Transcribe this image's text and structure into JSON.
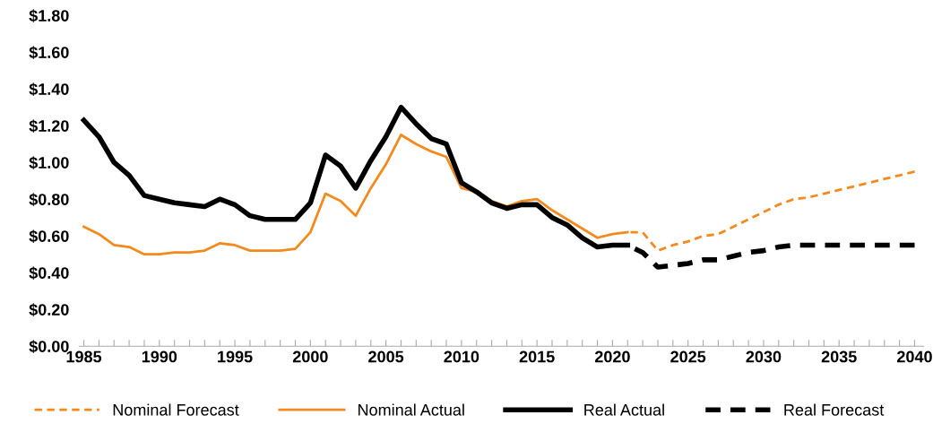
{
  "chart_data": {
    "type": "line",
    "xlim": [
      1984.7,
      2040.6
    ],
    "ylim": [
      0,
      1.8
    ],
    "xticks": [
      1985,
      {
        "value": 1986,
        "label": null
      },
      {
        "value": 1987,
        "label": null
      },
      {
        "value": 1988,
        "label": null
      },
      {
        "value": 1989,
        "label": null
      },
      1990,
      {
        "value": 1991,
        "label": null
      },
      {
        "value": 1992,
        "label": null
      },
      {
        "value": 1993,
        "label": null
      },
      {
        "value": 1994,
        "label": null
      },
      1995,
      {
        "value": 1996,
        "label": null
      },
      {
        "value": 1997,
        "label": null
      },
      {
        "value": 1998,
        "label": null
      },
      {
        "value": 1999,
        "label": null
      },
      2000,
      {
        "value": 2001,
        "label": null
      },
      {
        "value": 2002,
        "label": null
      },
      {
        "value": 2003,
        "label": null
      },
      {
        "value": 2004,
        "label": null
      },
      2005,
      {
        "value": 2006,
        "label": null
      },
      {
        "value": 2007,
        "label": null
      },
      {
        "value": 2008,
        "label": null
      },
      {
        "value": 2009,
        "label": null
      },
      2010,
      {
        "value": 2011,
        "label": null
      },
      {
        "value": 2012,
        "label": null
      },
      {
        "value": 2013,
        "label": null
      },
      {
        "value": 2014,
        "label": null
      },
      2015,
      {
        "value": 2016,
        "label": null
      },
      {
        "value": 2017,
        "label": null
      },
      {
        "value": 2018,
        "label": null
      },
      {
        "value": 2019,
        "label": null
      },
      2020,
      {
        "value": 2021,
        "label": null
      },
      {
        "value": 2022,
        "label": null
      },
      {
        "value": 2023,
        "label": null
      },
      {
        "value": 2024,
        "label": null
      },
      2025,
      {
        "value": 2026,
        "label": null
      },
      {
        "value": 2027,
        "label": null
      },
      {
        "value": 2028,
        "label": null
      },
      {
        "value": 2029,
        "label": null
      },
      2030,
      {
        "value": 2031,
        "label": null
      },
      {
        "value": 2032,
        "label": null
      },
      {
        "value": 2033,
        "label": null
      },
      {
        "value": 2034,
        "label": null
      },
      2035,
      {
        "value": 2036,
        "label": null
      },
      {
        "value": 2037,
        "label": null
      },
      {
        "value": 2038,
        "label": null
      },
      {
        "value": 2039,
        "label": null
      },
      2040
    ],
    "yticks": [
      {
        "value": 0,
        "label": "$0.00"
      },
      {
        "value": 0.2,
        "label": "$0.20"
      },
      {
        "value": 0.4,
        "label": "$0.40"
      },
      {
        "value": 0.6,
        "label": "$0.60"
      },
      {
        "value": 0.8,
        "label": "$0.80"
      },
      {
        "value": 1.0,
        "label": "$1.00"
      },
      {
        "value": 1.2,
        "label": "$1.20"
      },
      {
        "value": 1.4,
        "label": "$1.40"
      },
      {
        "value": 1.6,
        "label": "$1.60"
      },
      {
        "value": 1.8,
        "label": "$1.80"
      }
    ],
    "grid": false,
    "legend": "bottom",
    "marker": "none",
    "series": [
      {
        "name": "Nominal Forecast",
        "color": "#f28a1e",
        "line_style": "dashed",
        "x": [
          2021,
          2022,
          2023,
          2024,
          2025,
          2026,
          2027,
          2028,
          2029,
          2030,
          2031,
          2032,
          2033,
          2034,
          2035,
          2036,
          2037,
          2038,
          2039,
          2040
        ],
        "values": [
          0.62,
          0.62,
          0.52,
          0.55,
          0.57,
          0.6,
          0.61,
          0.65,
          0.69,
          0.73,
          0.77,
          0.8,
          0.81,
          0.83,
          0.85,
          0.87,
          0.89,
          0.91,
          0.93,
          0.95
        ]
      },
      {
        "name": "Nominal Actual",
        "color": "#f28a1e",
        "line_style": "solid",
        "x": [
          1985,
          1986,
          1987,
          1988,
          1989,
          1990,
          1991,
          1992,
          1993,
          1994,
          1995,
          1996,
          1997,
          1998,
          1999,
          2000,
          2001,
          2002,
          2003,
          2004,
          2005,
          2006,
          2007,
          2008,
          2009,
          2010,
          2011,
          2012,
          2013,
          2014,
          2015,
          2016,
          2017,
          2018,
          2019,
          2020,
          2021
        ],
        "values": [
          0.65,
          0.61,
          0.55,
          0.54,
          0.5,
          0.5,
          0.51,
          0.51,
          0.52,
          0.56,
          0.55,
          0.52,
          0.52,
          0.52,
          0.53,
          0.62,
          0.83,
          0.79,
          0.71,
          0.86,
          0.99,
          1.15,
          1.1,
          1.06,
          1.03,
          0.86,
          0.84,
          0.79,
          0.76,
          0.79,
          0.8,
          0.74,
          0.69,
          0.64,
          0.59,
          0.61,
          0.62
        ]
      },
      {
        "name": "Real Actual",
        "color": "#000000",
        "line_style": "solid",
        "x": [
          1985,
          1986,
          1987,
          1988,
          1989,
          1990,
          1991,
          1992,
          1993,
          1994,
          1995,
          1996,
          1997,
          1998,
          1999,
          2000,
          2001,
          2002,
          2003,
          2004,
          2005,
          2006,
          2007,
          2008,
          2009,
          2010,
          2011,
          2012,
          2013,
          2014,
          2015,
          2016,
          2017,
          2018,
          2019,
          2020,
          2021
        ],
        "values": [
          1.23,
          1.14,
          1.0,
          0.93,
          0.82,
          0.8,
          0.78,
          0.77,
          0.76,
          0.8,
          0.77,
          0.71,
          0.69,
          0.69,
          0.69,
          0.78,
          1.04,
          0.98,
          0.86,
          1.01,
          1.14,
          1.3,
          1.21,
          1.13,
          1.1,
          0.89,
          0.84,
          0.78,
          0.75,
          0.77,
          0.77,
          0.7,
          0.66,
          0.59,
          0.54,
          0.55,
          0.55
        ]
      },
      {
        "name": "Real Forecast",
        "color": "#000000",
        "line_style": "dashed",
        "x": [
          2021,
          2022,
          2023,
          2024,
          2025,
          2026,
          2027,
          2028,
          2029,
          2030,
          2031,
          2032,
          2033,
          2034,
          2035,
          2036,
          2037,
          2038,
          2039,
          2040
        ],
        "values": [
          0.55,
          0.51,
          0.43,
          0.44,
          0.45,
          0.47,
          0.47,
          0.49,
          0.51,
          0.52,
          0.54,
          0.55,
          0.55,
          0.55,
          0.55,
          0.55,
          0.55,
          0.55,
          0.55,
          0.55
        ]
      }
    ]
  }
}
